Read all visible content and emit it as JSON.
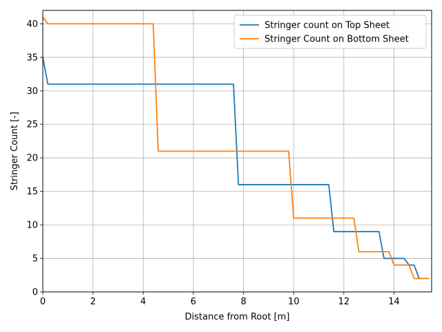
{
  "chart_data": {
    "type": "line",
    "title": "",
    "xlabel": "Distance from Root [m]",
    "ylabel": "Stringer Count [-]",
    "xlim": [
      0,
      15.5
    ],
    "ylim": [
      0,
      42
    ],
    "xticks": [
      0,
      2,
      4,
      6,
      8,
      10,
      12,
      14
    ],
    "yticks": [
      0,
      5,
      10,
      15,
      20,
      25,
      30,
      35,
      40
    ],
    "grid": true,
    "legend_position": "top-right",
    "series": [
      {
        "name": "Stringer count on Top Sheet",
        "color": "#1f77b4",
        "x": [
          0,
          0.2,
          7.6,
          7.8,
          11.4,
          11.6,
          13.4,
          13.6,
          14.4,
          14.6,
          14.8,
          15.0,
          15.4
        ],
        "y": [
          35,
          31,
          31,
          16,
          16,
          9,
          9,
          5,
          5,
          4,
          4,
          2,
          2
        ]
      },
      {
        "name": "Stringer Count on Bottom Sheet",
        "color": "#ff7f0e",
        "x": [
          0,
          0.2,
          4.4,
          4.6,
          9.8,
          10.0,
          12.4,
          12.6,
          13.8,
          14.0,
          14.6,
          14.8,
          15.4
        ],
        "y": [
          41,
          40,
          40,
          21,
          21,
          11,
          11,
          6,
          6,
          4,
          4,
          2,
          2
        ]
      }
    ]
  }
}
